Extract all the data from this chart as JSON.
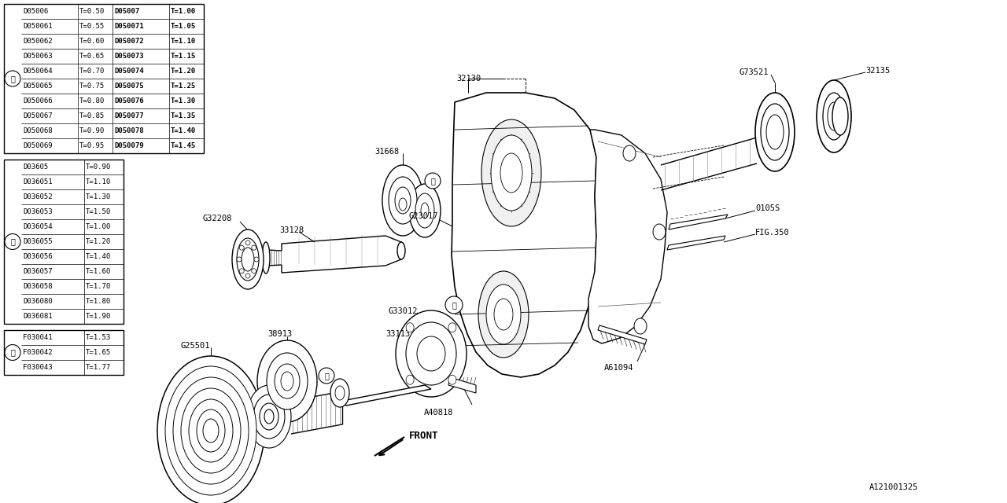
{
  "bg_color": "#ffffff",
  "fig_width": 12.8,
  "fig_height": 6.4,
  "lc": "#000000",
  "table1_rows": [
    [
      "D05006",
      "T=0.50",
      "D05007",
      "T=1.00"
    ],
    [
      "D050061",
      "T=0.55",
      "D050071",
      "T=1.05"
    ],
    [
      "D050062",
      "T=0.60",
      "D050072",
      "T=1.10"
    ],
    [
      "D050063",
      "T=0.65",
      "D050073",
      "T=1.15"
    ],
    [
      "D050064",
      "T=0.70",
      "D050074",
      "T=1.20"
    ],
    [
      "D050065",
      "T=0.75",
      "D050075",
      "T=1.25"
    ],
    [
      "D050066",
      "T=0.80",
      "D050076",
      "T=1.30"
    ],
    [
      "D050067",
      "T=0.85",
      "D050077",
      "T=1.35"
    ],
    [
      "D050068",
      "T=0.90",
      "D050078",
      "T=1.40"
    ],
    [
      "D050069",
      "T=0.95",
      "D050079",
      "T=1.45"
    ]
  ],
  "table2_rows": [
    [
      "D03605",
      "T=0.90"
    ],
    [
      "D036051",
      "T=1.10"
    ],
    [
      "D036052",
      "T=1.30"
    ],
    [
      "D036053",
      "T=1.50"
    ],
    [
      "D036054",
      "T=1.00"
    ],
    [
      "D036055",
      "T=1.20"
    ],
    [
      "D036056",
      "T=1.40"
    ],
    [
      "D036057",
      "T=1.60"
    ],
    [
      "D036058",
      "T=1.70"
    ],
    [
      "D036080",
      "T=1.80"
    ],
    [
      "D036081",
      "T=1.90"
    ]
  ],
  "table3_rows": [
    [
      "F030041",
      "T=1.53"
    ],
    [
      "F030042",
      "T=1.65"
    ],
    [
      "F030043",
      "T=1.77"
    ]
  ]
}
